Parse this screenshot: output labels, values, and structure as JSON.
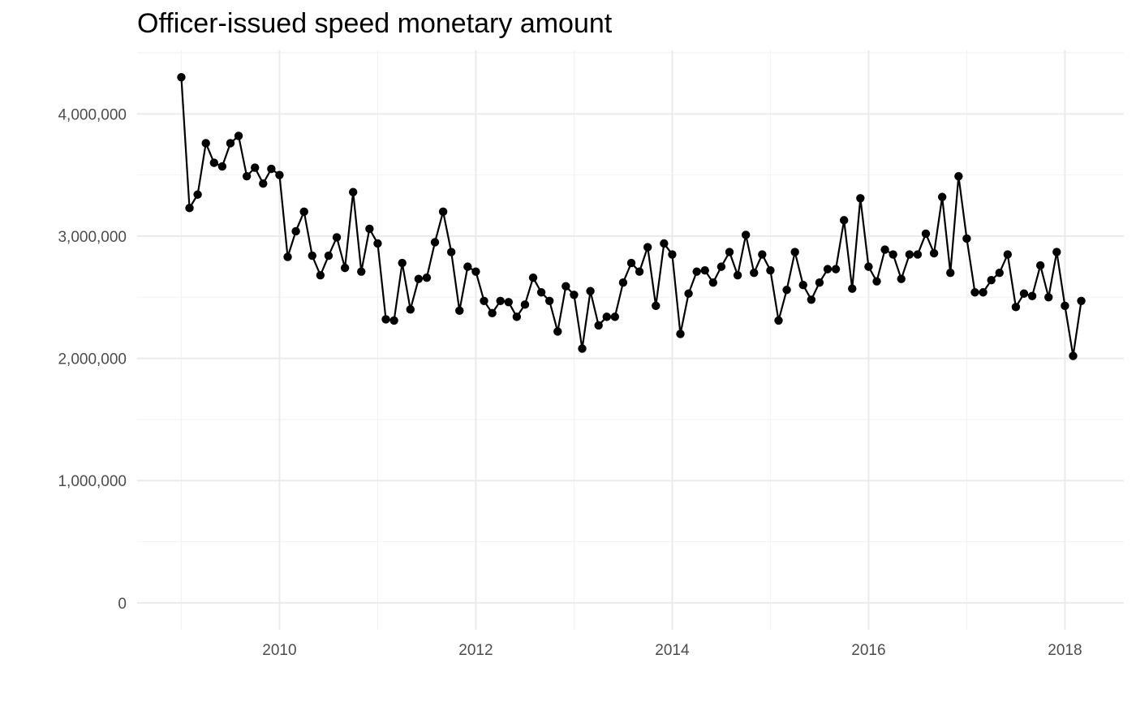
{
  "chart_data": {
    "type": "line",
    "title": "Officer-issued speed monetary amount",
    "xlabel": "",
    "ylabel": "",
    "xlim": [
      2008.55,
      2018.6
    ],
    "ylim": [
      -220000,
      4520000
    ],
    "x_ticks": [
      {
        "value": 2010,
        "label": "2010"
      },
      {
        "value": 2012,
        "label": "2012"
      },
      {
        "value": 2014,
        "label": "2014"
      },
      {
        "value": 2016,
        "label": "2016"
      },
      {
        "value": 2018,
        "label": "2018"
      }
    ],
    "y_ticks": [
      {
        "value": 0,
        "label": "0"
      },
      {
        "value": 1000000,
        "label": "1,000,000"
      },
      {
        "value": 2000000,
        "label": "2,000,000"
      },
      {
        "value": 3000000,
        "label": "3,000,000"
      },
      {
        "value": 4000000,
        "label": "4,000,000"
      }
    ],
    "x_minor": [
      2009,
      2011,
      2013,
      2015,
      2017
    ],
    "y_minor": [
      500000,
      1500000,
      2500000,
      3500000,
      4500000
    ],
    "grid": true,
    "series": [
      {
        "color": "#000000",
        "start": "2009-01",
        "x_unit": "month",
        "values": [
          4300000,
          3230000,
          3340000,
          3760000,
          3600000,
          3570000,
          3760000,
          3820000,
          3490000,
          3560000,
          3430000,
          3550000,
          3500000,
          2830000,
          3040000,
          3200000,
          2840000,
          2680000,
          2840000,
          2990000,
          2740000,
          3360000,
          2710000,
          3060000,
          2940000,
          2320000,
          2310000,
          2780000,
          2400000,
          2650000,
          2660000,
          2950000,
          3200000,
          2870000,
          2390000,
          2750000,
          2710000,
          2470000,
          2370000,
          2470000,
          2460000,
          2340000,
          2440000,
          2660000,
          2540000,
          2470000,
          2220000,
          2590000,
          2520000,
          2080000,
          2550000,
          2270000,
          2340000,
          2340000,
          2620000,
          2780000,
          2710000,
          2910000,
          2430000,
          2940000,
          2850000,
          2200000,
          2530000,
          2710000,
          2720000,
          2620000,
          2750000,
          2870000,
          2680000,
          3010000,
          2700000,
          2850000,
          2720000,
          2310000,
          2560000,
          2870000,
          2600000,
          2480000,
          2620000,
          2730000,
          2730000,
          3130000,
          2570000,
          3310000,
          2750000,
          2630000,
          2890000,
          2850000,
          2650000,
          2850000,
          2850000,
          3020000,
          2860000,
          3320000,
          2700000,
          3490000,
          2980000,
          2540000,
          2540000,
          2640000,
          2700000,
          2850000,
          2420000,
          2530000,
          2510000,
          2760000,
          2500000,
          2870000,
          2430000,
          2020000,
          2470000
        ]
      }
    ]
  }
}
